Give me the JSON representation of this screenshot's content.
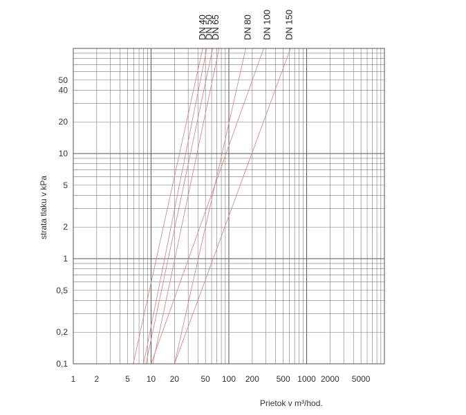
{
  "chart_data": {
    "type": "line",
    "xlabel": "Prietok v m³/hod.",
    "ylabel": "strata tlaku v kPa",
    "x_scale": "log",
    "y_scale": "log",
    "xlim": [
      1,
      10000
    ],
    "ylim": [
      0.1,
      100
    ],
    "grid": true,
    "line_color": "#d98a8a",
    "grid_color": "#555555",
    "x_ticks": [
      1,
      2,
      5,
      10,
      20,
      50,
      100,
      200,
      500,
      1000,
      2000,
      5000
    ],
    "x_tick_labels": [
      "1",
      "2",
      "5",
      "10",
      "20",
      "50",
      "100",
      "200",
      "500",
      "1000",
      "2000",
      "5000"
    ],
    "y_ticks": [
      0.1,
      0.2,
      0.5,
      1,
      2,
      5,
      10,
      20,
      40,
      50
    ],
    "y_tick_labels": [
      "0,1",
      "0,2",
      "0,5",
      "1",
      "2",
      "5",
      "10",
      "20",
      "40",
      "50"
    ],
    "series": [
      {
        "name": "DN 40",
        "points": [
          [
            5.9,
            0.1
          ],
          [
            46,
            100
          ]
        ]
      },
      {
        "name": "DN 40",
        "points": [
          [
            8.0,
            0.1
          ],
          [
            52,
            100
          ]
        ]
      },
      {
        "name": "DN 50",
        "points": [
          [
            8.6,
            0.1
          ],
          [
            62,
            100
          ]
        ]
      },
      {
        "name": "DN 65",
        "points": [
          [
            10.5,
            0.1
          ],
          [
            75,
            100
          ]
        ]
      },
      {
        "name": "DN 80",
        "points": [
          [
            20,
            0.1
          ],
          [
            165,
            100
          ]
        ]
      },
      {
        "name": "DN 100",
        "points": [
          [
            10,
            0.1
          ],
          [
            280,
            100
          ]
        ]
      },
      {
        "name": "DN 150",
        "points": [
          [
            20,
            0.1
          ],
          [
            620,
            100
          ]
        ]
      }
    ],
    "series_labels": [
      "DN 40",
      "DN 50",
      "DN 65",
      "DN 80",
      "DN 100",
      "DN 150"
    ]
  }
}
